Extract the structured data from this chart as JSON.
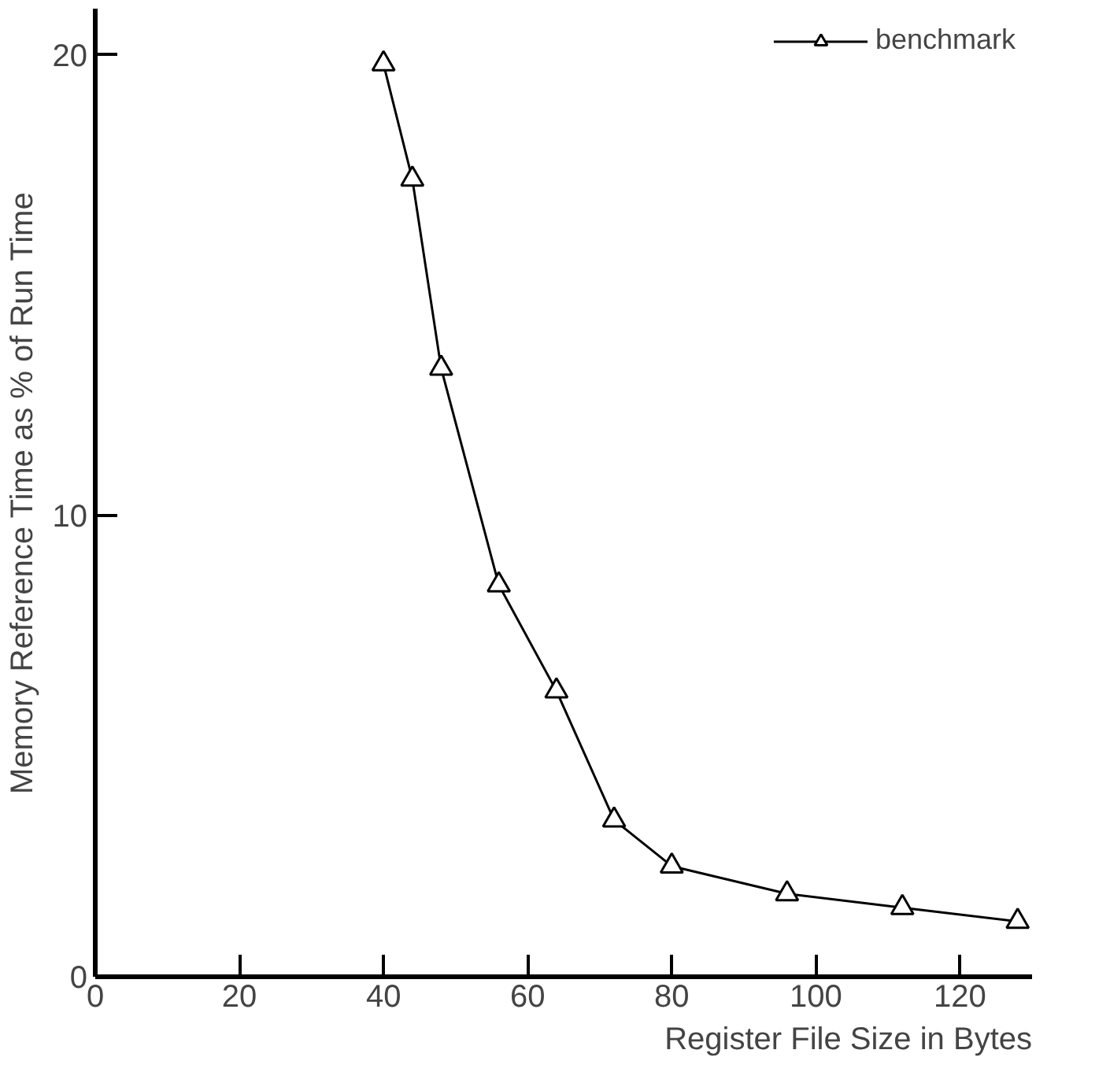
{
  "chart_data": {
    "type": "line",
    "xlabel": "Register File Size in Bytes",
    "ylabel": "Memory Reference Time as % of Run Time",
    "x": [
      40,
      44,
      48,
      56,
      64,
      72,
      80,
      96,
      112,
      128
    ],
    "series": [
      {
        "name": "benchmark",
        "color": "#000000",
        "values": [
          19.8,
          17.3,
          13.2,
          8.5,
          6.2,
          3.4,
          2.4,
          1.8,
          1.5,
          1.2
        ]
      }
    ],
    "xlim": [
      0,
      130
    ],
    "ylim": [
      0,
      21
    ],
    "xticks": [
      0,
      20,
      40,
      60,
      80,
      100,
      120
    ],
    "yticks": [
      0,
      10,
      20
    ],
    "grid": false,
    "legend": "top right",
    "marker": "triangle",
    "line_style": "solid"
  }
}
